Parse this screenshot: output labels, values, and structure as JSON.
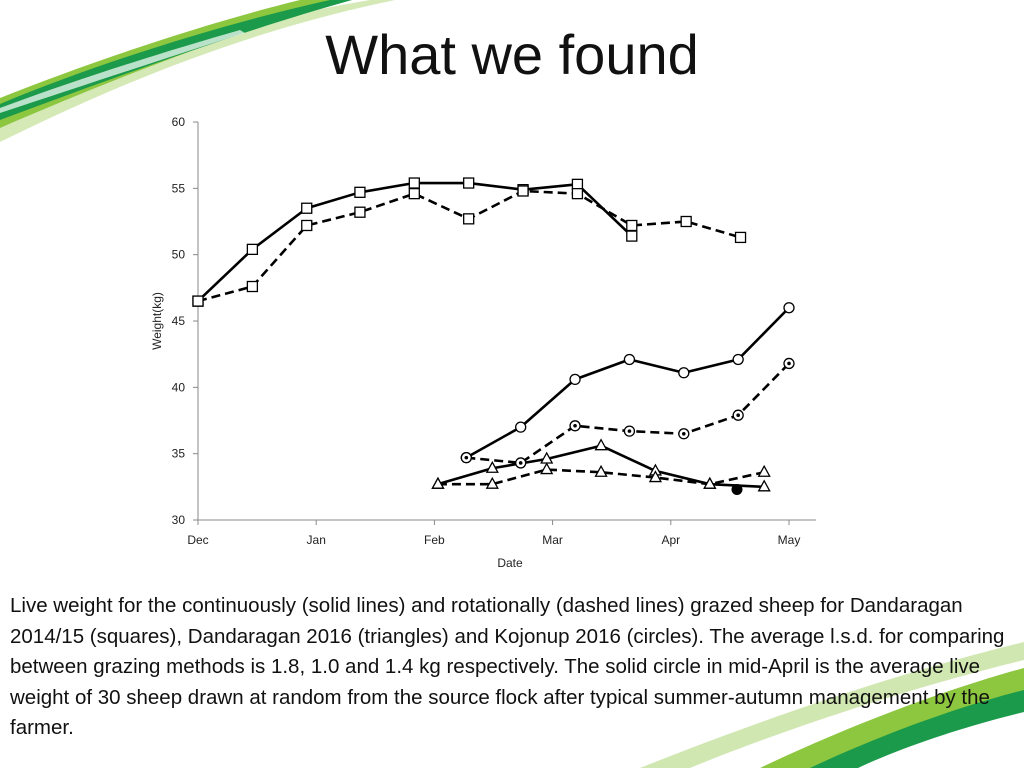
{
  "slide": {
    "title": "What we found",
    "caption": "Live weight for the continuously (solid lines) and rotationally (dashed lines) grazed sheep for Dandaragan 2014/15 (squares), Dandaragan 2016 (triangles) and Kojonup 2016 (circles). The average l.s.d. for comparing between grazing methods is 1.8, 1.0 and 1.4 kg respectively. The solid circle in mid-April is the average live weight of 30 sheep drawn at random from the source flock after typical summer-autumn management by the farmer.",
    "accent_colors": [
      "#1a9a4a",
      "#8dc63f",
      "#c9e3a4"
    ]
  },
  "chart_data": {
    "type": "line",
    "xlabel": "Date",
    "ylabel": "Weight(kg)",
    "x_categories": [
      "Dec",
      "Jan",
      "Feb",
      "Mar",
      "Apr",
      "May"
    ],
    "xlim": [
      0,
      5
    ],
    "ylim": [
      30,
      60
    ],
    "yticks": [
      30,
      35,
      40,
      45,
      50,
      55,
      60
    ],
    "grid": false,
    "legend": "none",
    "series": [
      {
        "marker": "square",
        "style": "solid",
        "x": [
          0,
          0.46,
          0.92,
          1.37,
          1.83,
          2.29,
          2.75,
          3.21,
          3.67
        ],
        "y": [
          46.5,
          50.4,
          53.5,
          54.7,
          55.4,
          55.4,
          54.9,
          55.3,
          51.4
        ]
      },
      {
        "marker": "square",
        "style": "dashed",
        "x": [
          0,
          0.46,
          0.92,
          1.37,
          1.83,
          2.29,
          2.75,
          3.21,
          3.67,
          4.13,
          4.59
        ],
        "y": [
          46.5,
          47.6,
          52.2,
          53.2,
          54.6,
          52.7,
          54.8,
          54.6,
          52.2,
          52.5,
          51.3
        ]
      },
      {
        "marker": "circle",
        "style": "solid",
        "x": [
          2.27,
          2.73,
          3.19,
          3.65,
          4.11,
          4.57,
          5.0
        ],
        "y": [
          34.7,
          37.0,
          40.6,
          42.1,
          41.1,
          42.1,
          46.0
        ]
      },
      {
        "marker": "circle-dot",
        "style": "dashed",
        "x": [
          2.27,
          2.73,
          3.19,
          3.65,
          4.11,
          4.57,
          5.0
        ],
        "y": [
          34.7,
          34.3,
          37.1,
          36.7,
          36.5,
          37.9,
          41.8
        ]
      },
      {
        "marker": "triangle",
        "style": "solid",
        "x": [
          2.03,
          2.49,
          2.95,
          3.41,
          3.87,
          4.33,
          4.79
        ],
        "y": [
          32.7,
          33.9,
          34.6,
          35.6,
          33.7,
          32.7,
          32.5
        ]
      },
      {
        "marker": "triangle",
        "style": "dashed",
        "x": [
          2.03,
          2.49,
          2.95,
          3.41,
          3.87,
          4.33,
          4.79
        ],
        "y": [
          32.7,
          32.7,
          33.8,
          33.6,
          33.2,
          32.7,
          33.6
        ]
      },
      {
        "marker": "filled-circle",
        "style": "none",
        "x": [
          4.56
        ],
        "y": [
          32.3
        ]
      }
    ]
  }
}
